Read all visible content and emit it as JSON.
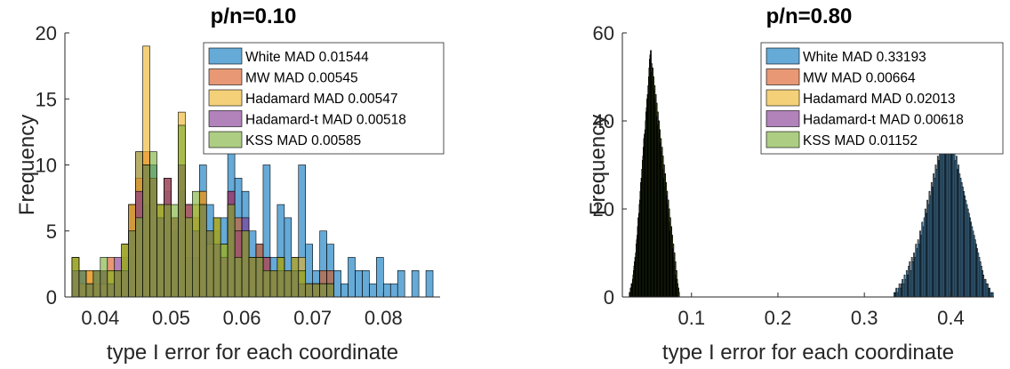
{
  "chart_data": [
    {
      "type": "histogram",
      "title": "p/n=0.10",
      "xlabel": "type I error for each coordinate",
      "ylabel": "Frequency",
      "xlim": [
        0.035,
        0.088
      ],
      "ylim": [
        0,
        20
      ],
      "xticks": [
        "0.04",
        "0.05",
        "0.06",
        "0.07",
        "0.08"
      ],
      "yticks": [
        "0",
        "5",
        "10",
        "15",
        "20"
      ],
      "legend_position": "top-right",
      "series": [
        {
          "name": "White MAD 0.01544",
          "color": "#0072BD",
          "bin_start": 0.036,
          "bin_width": 0.001,
          "counts": [
            2,
            2,
            1,
            2,
            2,
            1,
            2,
            3,
            7,
            11,
            7,
            10,
            6,
            8,
            5,
            8,
            3,
            3,
            10,
            7,
            5,
            6,
            11,
            9,
            8,
            5,
            4,
            10,
            3,
            7,
            6,
            2,
            10,
            4,
            2,
            5,
            4,
            2,
            1,
            3,
            2,
            2,
            1,
            3,
            1,
            1,
            2,
            0,
            2,
            0,
            2
          ]
        },
        {
          "name": "MW MAD 0.00545",
          "color": "#D95319",
          "bin_start": 0.036,
          "bin_width": 0.001,
          "counts": [
            3,
            1,
            2,
            1,
            2,
            3,
            2,
            4,
            7,
            9,
            11,
            9,
            7,
            9,
            6,
            10,
            7,
            6,
            8,
            5,
            6,
            3,
            8,
            6,
            5,
            3,
            4,
            3,
            2,
            3,
            2,
            3,
            2,
            1,
            1,
            2,
            2
          ]
        },
        {
          "name": "Hadamard MAD 0.00547",
          "color": "#EDB120",
          "bin_start": 0.036,
          "bin_width": 0.001,
          "counts": [
            3,
            1,
            2,
            2,
            1,
            2,
            2,
            4,
            7,
            11,
            19,
            9,
            7,
            9,
            6,
            14,
            7,
            7,
            8,
            4,
            6,
            4,
            7,
            5,
            5,
            3,
            3,
            3,
            2,
            3,
            2,
            2,
            3,
            1,
            1,
            1,
            1
          ]
        },
        {
          "name": "Hadamard-t MAD 0.00518",
          "color": "#7E2F8E",
          "bin_start": 0.036,
          "bin_width": 0.001,
          "counts": [
            2,
            2,
            1,
            2,
            2,
            1,
            3,
            2,
            5,
            8,
            10,
            9,
            6,
            9,
            6,
            10,
            7,
            5,
            7,
            5,
            4,
            3,
            8,
            5,
            6,
            3,
            3,
            3,
            2,
            2,
            2,
            2,
            1,
            1,
            1,
            1,
            1
          ]
        },
        {
          "name": "KSS MAD 0.00585",
          "color": "#77AC30",
          "bin_start": 0.036,
          "bin_width": 0.001,
          "counts": [
            3,
            2,
            1,
            2,
            3,
            2,
            2,
            4,
            5,
            6,
            10,
            11,
            7,
            7,
            7,
            13,
            6,
            8,
            7,
            5,
            6,
            4,
            7,
            3,
            5,
            3,
            3,
            2,
            2,
            3,
            2,
            3,
            2,
            1,
            1,
            1,
            1
          ]
        }
      ]
    },
    {
      "type": "histogram",
      "title": "p/n=0.80",
      "xlabel": "type I error for each coordinate",
      "ylabel": "Frequency",
      "xlim": [
        0.02,
        0.45
      ],
      "ylim": [
        0,
        60
      ],
      "xticks": [
        "0.1",
        "0.2",
        "0.3",
        "0.4"
      ],
      "yticks": [
        "0",
        "20",
        "40",
        "60"
      ],
      "legend_position": "top-right",
      "series": [
        {
          "name": "White MAD 0.33193",
          "color": "#0072BD",
          "bin_start": 0.334,
          "bin_width": 0.0012,
          "counts": [
            1,
            1,
            2,
            1,
            2,
            3,
            2,
            3,
            4,
            3,
            5,
            4,
            6,
            5,
            7,
            8,
            6,
            9,
            8,
            10,
            9,
            12,
            11,
            13,
            12,
            15,
            14,
            17,
            16,
            18,
            20,
            19,
            22,
            21,
            24,
            23,
            26,
            25,
            28,
            27,
            30,
            29,
            32,
            31,
            34,
            33,
            36,
            35,
            38,
            40,
            37,
            41,
            39,
            36,
            38,
            34,
            36,
            33,
            35,
            31,
            32,
            29,
            30,
            28,
            27,
            26,
            25,
            24,
            23,
            22,
            21,
            20,
            19,
            18,
            17,
            16,
            15,
            14,
            13,
            12,
            11,
            10,
            9,
            8,
            7,
            6,
            5,
            4,
            4,
            3,
            3,
            2,
            2,
            1,
            1,
            1
          ]
        },
        {
          "name": "MW MAD 0.00664",
          "color": "#D95319",
          "bin_start": 0.028,
          "bin_width": 0.0006,
          "counts": [
            1,
            1,
            2,
            2,
            3,
            3,
            4,
            5,
            6,
            7,
            8,
            9,
            10,
            12,
            13,
            14,
            16,
            18,
            19,
            21,
            22,
            24,
            26,
            27,
            29,
            31,
            32,
            34,
            36,
            37,
            38,
            40,
            42,
            43,
            45,
            46,
            48,
            50,
            52,
            54,
            55,
            56,
            53,
            51,
            52,
            49,
            50,
            47,
            48,
            45,
            46,
            43,
            44,
            41,
            42,
            39,
            40,
            37,
            38,
            35,
            36,
            33,
            34,
            31,
            32,
            29,
            30,
            27,
            28,
            25,
            26,
            23,
            24,
            21,
            22,
            19,
            20,
            17,
            18,
            15,
            16,
            13,
            14,
            11,
            12,
            9,
            10,
            7,
            8,
            5,
            6,
            4,
            3,
            2,
            2,
            1
          ]
        },
        {
          "name": "Hadamard MAD 0.02013",
          "color": "#EDB120",
          "bin_start": 0.028,
          "bin_width": 0.0006,
          "counts": [
            1,
            1,
            2,
            2,
            3,
            3,
            4,
            5,
            6,
            7,
            8,
            9,
            10,
            12,
            13,
            14,
            16,
            18,
            19,
            21,
            22,
            24,
            26,
            27,
            29,
            31,
            32,
            34,
            36,
            37,
            38,
            40,
            42,
            43,
            45,
            46,
            48,
            50,
            52,
            54,
            55,
            56,
            53,
            51,
            52,
            49,
            50,
            47,
            48,
            45,
            46,
            43,
            44,
            41,
            42,
            39,
            40,
            37,
            38,
            35,
            36,
            33,
            34,
            31,
            32,
            29,
            30,
            27,
            28,
            25,
            26,
            23,
            24,
            21,
            22,
            19,
            20,
            17,
            18,
            15,
            16,
            13,
            14,
            11,
            12,
            9,
            10,
            7,
            8,
            5,
            6,
            4,
            3,
            2,
            2,
            1
          ]
        },
        {
          "name": "Hadamard-t MAD 0.00618",
          "color": "#7E2F8E",
          "bin_start": 0.028,
          "bin_width": 0.0006,
          "counts": [
            1,
            1,
            2,
            2,
            3,
            3,
            4,
            5,
            6,
            7,
            8,
            9,
            10,
            12,
            13,
            14,
            16,
            18,
            19,
            21,
            22,
            24,
            26,
            27,
            29,
            31,
            32,
            34,
            36,
            37,
            38,
            40,
            42,
            43,
            45,
            46,
            48,
            50,
            52,
            54,
            55,
            56,
            53,
            51,
            52,
            49,
            50,
            47,
            48,
            45,
            46,
            43,
            44,
            41,
            42,
            39,
            40,
            37,
            38,
            35,
            36,
            33,
            34,
            31,
            32,
            29,
            30,
            27,
            28,
            25,
            26,
            23,
            24,
            21,
            22,
            19,
            20,
            17,
            18,
            15,
            16,
            13,
            14,
            11,
            12,
            9,
            10,
            7,
            8,
            5,
            6,
            4,
            3,
            2,
            2,
            1
          ]
        },
        {
          "name": "KSS MAD 0.01152",
          "color": "#77AC30",
          "bin_start": 0.028,
          "bin_width": 0.0006,
          "counts": [
            1,
            1,
            2,
            2,
            3,
            3,
            4,
            5,
            6,
            7,
            8,
            9,
            10,
            12,
            13,
            14,
            16,
            18,
            19,
            21,
            22,
            24,
            26,
            27,
            29,
            31,
            32,
            34,
            36,
            37,
            38,
            40,
            42,
            43,
            45,
            46,
            48,
            50,
            52,
            54,
            55,
            56,
            53,
            51,
            52,
            49,
            50,
            47,
            48,
            45,
            46,
            43,
            44,
            41,
            42,
            39,
            40,
            37,
            38,
            35,
            36,
            33,
            34,
            31,
            32,
            29,
            30,
            27,
            28,
            25,
            26,
            23,
            24,
            21,
            22,
            19,
            20,
            17,
            18,
            15,
            16,
            13,
            14,
            11,
            12,
            9,
            10,
            7,
            8,
            5,
            6,
            4,
            3,
            2,
            2,
            1
          ]
        }
      ]
    }
  ]
}
